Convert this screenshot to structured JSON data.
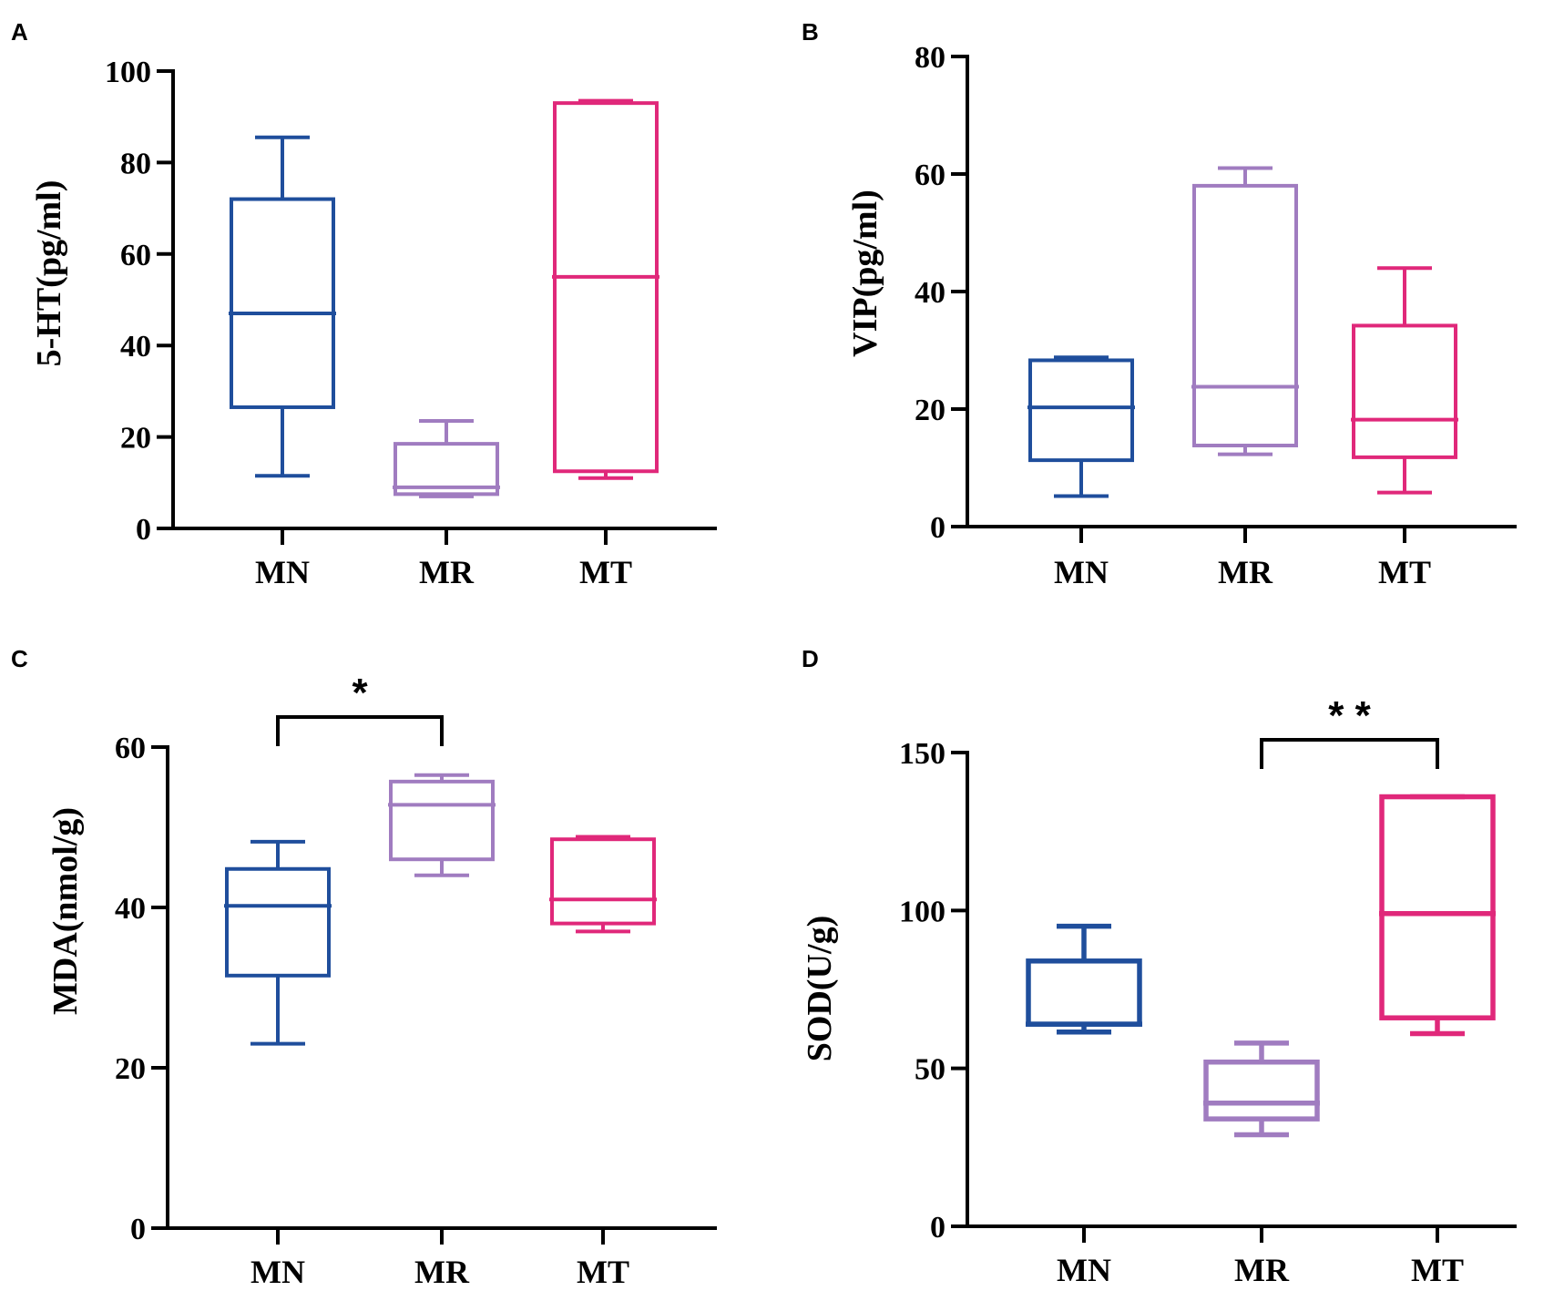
{
  "colors": {
    "MN": "#1f4e9c",
    "MR": "#a07cc0",
    "MT": "#e0287a",
    "axis": "#000000"
  },
  "chart_data": [
    {
      "panel": "A",
      "type": "boxplot",
      "ylabel": "5-HT(pg/ml)",
      "ylim": [
        0,
        100
      ],
      "yticks": [
        0,
        20,
        40,
        60,
        80,
        100
      ],
      "categories": [
        "MN",
        "MR",
        "MT"
      ],
      "boxes": [
        {
          "name": "MN",
          "min": 11.5,
          "q1": 26.5,
          "median": 47,
          "q3": 72,
          "max": 85.5
        },
        {
          "name": "MR",
          "min": 7,
          "q1": 7.5,
          "median": 9,
          "q3": 18.5,
          "max": 23.5
        },
        {
          "name": "MT",
          "min": 11,
          "q1": 12.5,
          "median": 55,
          "q3": 93,
          "max": 93.5
        }
      ],
      "significance": []
    },
    {
      "panel": "B",
      "type": "boxplot",
      "ylabel": "VIP(pg/ml)",
      "ylim": [
        0,
        80
      ],
      "yticks": [
        0,
        20,
        40,
        60,
        80
      ],
      "categories": [
        "MN",
        "MR",
        "MT"
      ],
      "boxes": [
        {
          "name": "MN",
          "min": 5.2,
          "q1": 11.3,
          "median": 20.3,
          "q3": 28.3,
          "max": 28.8
        },
        {
          "name": "MR",
          "min": 12.3,
          "q1": 13.8,
          "median": 23.8,
          "q3": 58,
          "max": 61
        },
        {
          "name": "MT",
          "min": 5.8,
          "q1": 11.8,
          "median": 18.2,
          "q3": 34.2,
          "max": 44
        }
      ],
      "significance": []
    },
    {
      "panel": "C",
      "type": "boxplot",
      "ylabel": "MDA(nmol/g)",
      "ylim": [
        0,
        60
      ],
      "yticks": [
        0,
        20,
        40,
        60
      ],
      "categories": [
        "MN",
        "MR",
        "MT"
      ],
      "boxes": [
        {
          "name": "MN",
          "min": 23,
          "q1": 31.5,
          "median": 40.2,
          "q3": 44.8,
          "max": 48.2
        },
        {
          "name": "MR",
          "min": 44,
          "q1": 46,
          "median": 52.8,
          "q3": 55.7,
          "max": 56.5
        },
        {
          "name": "MT",
          "min": 37,
          "q1": 38,
          "median": 41,
          "q3": 48.5,
          "max": 48.8
        }
      ],
      "significance": [
        {
          "from": 0,
          "to": 1,
          "label": "*"
        }
      ]
    },
    {
      "panel": "D",
      "type": "boxplot",
      "ylabel": "SOD(U/g)",
      "ylim": [
        0,
        150
      ],
      "yticks": [
        0,
        50,
        100,
        150
      ],
      "categories": [
        "MN",
        "MR",
        "MT"
      ],
      "boxes": [
        {
          "name": "MN",
          "min": 61.5,
          "q1": 64,
          "median": 64,
          "q3": 84,
          "max": 95
        },
        {
          "name": "MR",
          "min": 29,
          "q1": 34,
          "median": 39,
          "q3": 52,
          "max": 58
        },
        {
          "name": "MT",
          "min": 61,
          "q1": 66,
          "median": 99,
          "q3": 136,
          "max": 136
        }
      ],
      "significance": [
        {
          "from": 1,
          "to": 2,
          "label": "* *"
        }
      ]
    }
  ]
}
